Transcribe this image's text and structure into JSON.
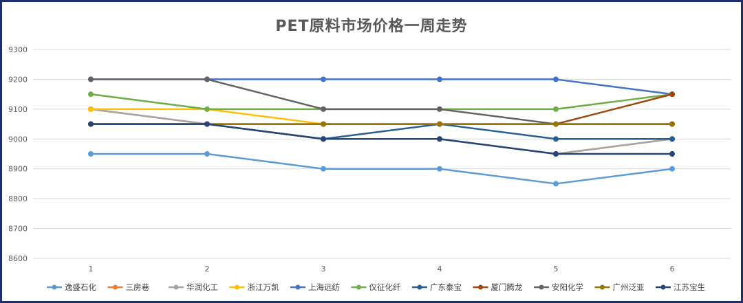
{
  "chart_data": {
    "type": "line",
    "title": "PET原料市场价格一周走势",
    "xlabel": "",
    "ylabel": "",
    "x": [
      "1",
      "2",
      "3",
      "4",
      "5",
      "6"
    ],
    "ylim": [
      8600,
      9300
    ],
    "yticks": [
      8600,
      8700,
      8800,
      8900,
      9000,
      9100,
      9200,
      9300
    ],
    "grid": true,
    "legend_position": "bottom",
    "series": [
      {
        "name": "逸盛石化",
        "color": "#5b9bd5",
        "values": [
          8950,
          8950,
          8900,
          8900,
          8850,
          8900
        ]
      },
      {
        "name": "三房巷",
        "color": "#ed7d31",
        "values": [
          9100,
          9050,
          9000,
          9000,
          8950,
          9000
        ]
      },
      {
        "name": "华润化工",
        "color": "#a5a5a5",
        "values": [
          9100,
          9050,
          9000,
          9000,
          8950,
          9000
        ]
      },
      {
        "name": "浙江万凯",
        "color": "#ffc000",
        "values": [
          9100,
          9100,
          9050,
          9050,
          9050,
          9050
        ]
      },
      {
        "name": "上海远纺",
        "color": "#4472c4",
        "values": [
          9200,
          9200,
          9200,
          9200,
          9200,
          9150
        ]
      },
      {
        "name": "仪征化纤",
        "color": "#70ad47",
        "values": [
          9150,
          9100,
          9100,
          9100,
          9100,
          9150
        ]
      },
      {
        "name": "广东泰宝",
        "color": "#255e91",
        "values": [
          9050,
          9050,
          9000,
          9050,
          9000,
          9000
        ]
      },
      {
        "name": "厦门腾龙",
        "color": "#9e480e",
        "values": [
          9050,
          9050,
          9050,
          9050,
          9050,
          9150
        ]
      },
      {
        "name": "安阳化学",
        "color": "#636363",
        "values": [
          9200,
          9200,
          9100,
          9100,
          9050,
          9050
        ]
      },
      {
        "name": "广州泛亚",
        "color": "#997300",
        "values": [
          9050,
          9050,
          9050,
          9050,
          9050,
          9050
        ]
      },
      {
        "name": "江苏宝生",
        "color": "#264478",
        "values": [
          9050,
          9050,
          9000,
          9000,
          8950,
          8950
        ]
      }
    ]
  }
}
